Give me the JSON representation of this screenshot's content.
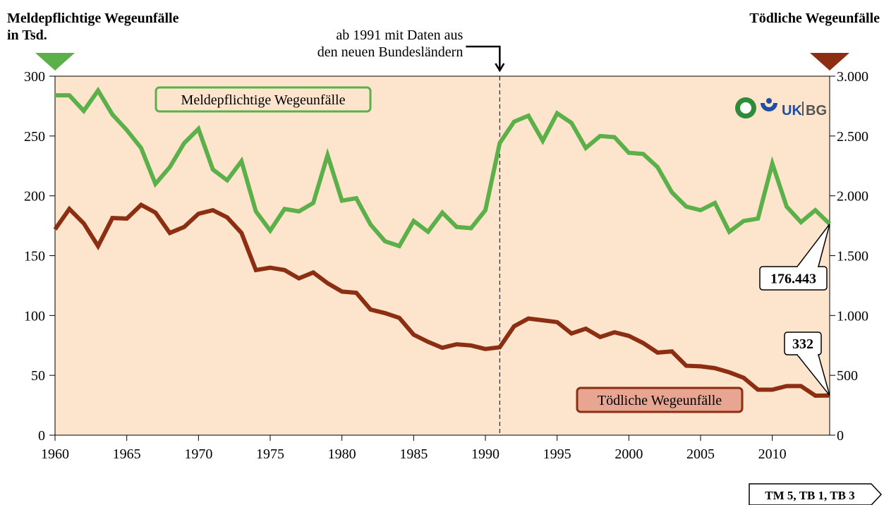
{
  "chart_data": {
    "type": "line",
    "ylabel": [
      "Meldepflichtige Wegeunfälle",
      "in Tsd."
    ],
    "y2label": "Tödliche Wegeunfälle",
    "annotation": {
      "x": 1991,
      "lines": [
        "ab 1991 mit Daten aus",
        "den neuen Bundesländern"
      ]
    },
    "logo_text": [
      "UK",
      "BG"
    ],
    "footer": "TM 5, TB 1, TB 3",
    "x": [
      1960,
      1961,
      1962,
      1963,
      1964,
      1965,
      1966,
      1967,
      1968,
      1969,
      1970,
      1971,
      1972,
      1973,
      1974,
      1975,
      1976,
      1977,
      1978,
      1979,
      1980,
      1981,
      1982,
      1983,
      1984,
      1985,
      1986,
      1987,
      1988,
      1989,
      1990,
      1991,
      1992,
      1993,
      1994,
      1995,
      1996,
      1997,
      1998,
      1999,
      2000,
      2001,
      2002,
      2003,
      2004,
      2005,
      2006,
      2007,
      2008,
      2009,
      2010,
      2011,
      2012,
      2013,
      2014
    ],
    "xlim": [
      1960,
      2014
    ],
    "xticks": [
      1960,
      1965,
      1970,
      1975,
      1980,
      1985,
      1990,
      1995,
      2000,
      2005,
      2010
    ],
    "ylim": [
      0,
      300
    ],
    "yticks": [
      0,
      50,
      100,
      150,
      200,
      250,
      300
    ],
    "y2lim": [
      0,
      3000
    ],
    "y2ticks": [
      0,
      {
        "value": 500,
        "label": "500"
      },
      {
        "value": 1000,
        "label": "1.000"
      },
      {
        "value": 1500,
        "label": "1.500"
      },
      {
        "value": 2000,
        "label": "2.000"
      },
      {
        "value": 2500,
        "label": "2.500"
      },
      {
        "value": 3000,
        "label": "3.000"
      }
    ],
    "series": [
      {
        "name": "Meldepflichtige Wegeunfälle",
        "color": "#5cb04a",
        "values": [
          284,
          284,
          271,
          288,
          268,
          255,
          240,
          210,
          224,
          244,
          256,
          222,
          213,
          229,
          187,
          171,
          189,
          187,
          194,
          234,
          196,
          198,
          176,
          162,
          158,
          179,
          170,
          186,
          174,
          173,
          188,
          244,
          262,
          267,
          246,
          269,
          261,
          240,
          250,
          249,
          236,
          235,
          224,
          203,
          191,
          188,
          194,
          170,
          179,
          181,
          227,
          191,
          178,
          188,
          176.443
        ],
        "value_labels": [
          null,
          null,
          null,
          null,
          null,
          null,
          null,
          null,
          null,
          null,
          null,
          null,
          null,
          null,
          null,
          null,
          null,
          null,
          null,
          null,
          null,
          null,
          null,
          null,
          null,
          null,
          null,
          null,
          null,
          null,
          null,
          null,
          null,
          null,
          null,
          null,
          null,
          null,
          null,
          null,
          null,
          null,
          null,
          null,
          null,
          null,
          null,
          null,
          null,
          null,
          null,
          null,
          null,
          null,
          "176.443"
        ]
      },
      {
        "name": "Tödliche Wegeunfälle",
        "color": "#8b2e12",
        "axis": "y2",
        "values": [
          1720,
          1890,
          1770,
          1580,
          1815,
          1810,
          1925,
          1860,
          1690,
          1740,
          1850,
          1880,
          1820,
          1690,
          1380,
          1400,
          1380,
          1310,
          1360,
          1270,
          1200,
          1190,
          1050,
          1020,
          980,
          840,
          780,
          730,
          760,
          750,
          720,
          735,
          910,
          975,
          960,
          945,
          850,
          890,
          820,
          860,
          830,
          770,
          690,
          700,
          580,
          575,
          560,
          525,
          480,
          380,
          380,
          410,
          410,
          330,
          332
        ],
        "value_labels": [
          null,
          null,
          null,
          null,
          null,
          null,
          null,
          null,
          null,
          null,
          null,
          null,
          null,
          null,
          null,
          null,
          null,
          null,
          null,
          null,
          null,
          null,
          null,
          null,
          null,
          null,
          null,
          null,
          null,
          null,
          null,
          null,
          null,
          null,
          null,
          null,
          null,
          null,
          null,
          null,
          null,
          null,
          null,
          null,
          null,
          null,
          null,
          null,
          null,
          null,
          null,
          null,
          null,
          null,
          "332"
        ]
      }
    ]
  }
}
